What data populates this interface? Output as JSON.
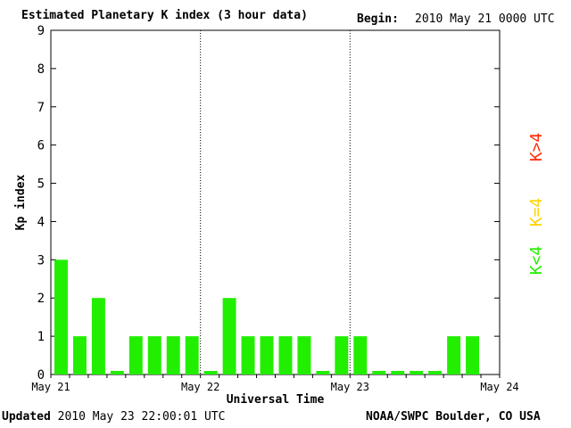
{
  "header": {
    "title": "Estimated Planetary K index (3 hour data)",
    "begin_label": "Begin:",
    "begin_value": "2010 May 21 0000 UTC"
  },
  "footer": {
    "updated_label": "Updated",
    "updated_value": "2010 May 23 22:00:01 UTC",
    "credit": "NOAA/SWPC Boulder, CO USA"
  },
  "legend": [
    {
      "text": "K>4",
      "color": "#ff2a00"
    },
    {
      "text": "K=4",
      "color": "#ffd200"
    },
    {
      "text": "K<4",
      "color": "#22ee00"
    }
  ],
  "chart_data": {
    "type": "bar",
    "title": "Estimated Planetary K index (3 hour data)",
    "xlabel": "Universal Time",
    "ylabel": "Kp index",
    "ylim": [
      0,
      9
    ],
    "yticks": [
      "0",
      "1",
      "2",
      "3",
      "4",
      "5",
      "6",
      "7",
      "8",
      "9"
    ],
    "xticks": [
      "May 21",
      "May 22",
      "May 23",
      "May 24"
    ],
    "day_separators": "dotted vertical lines at day boundaries",
    "bar_color": "#22ee00",
    "series": [
      {
        "values": [
          3,
          1,
          2,
          0,
          1,
          1,
          1,
          1,
          0,
          2,
          1,
          1,
          1,
          1,
          0,
          1,
          1,
          0,
          0,
          0,
          0,
          1,
          1
        ]
      }
    ]
  }
}
